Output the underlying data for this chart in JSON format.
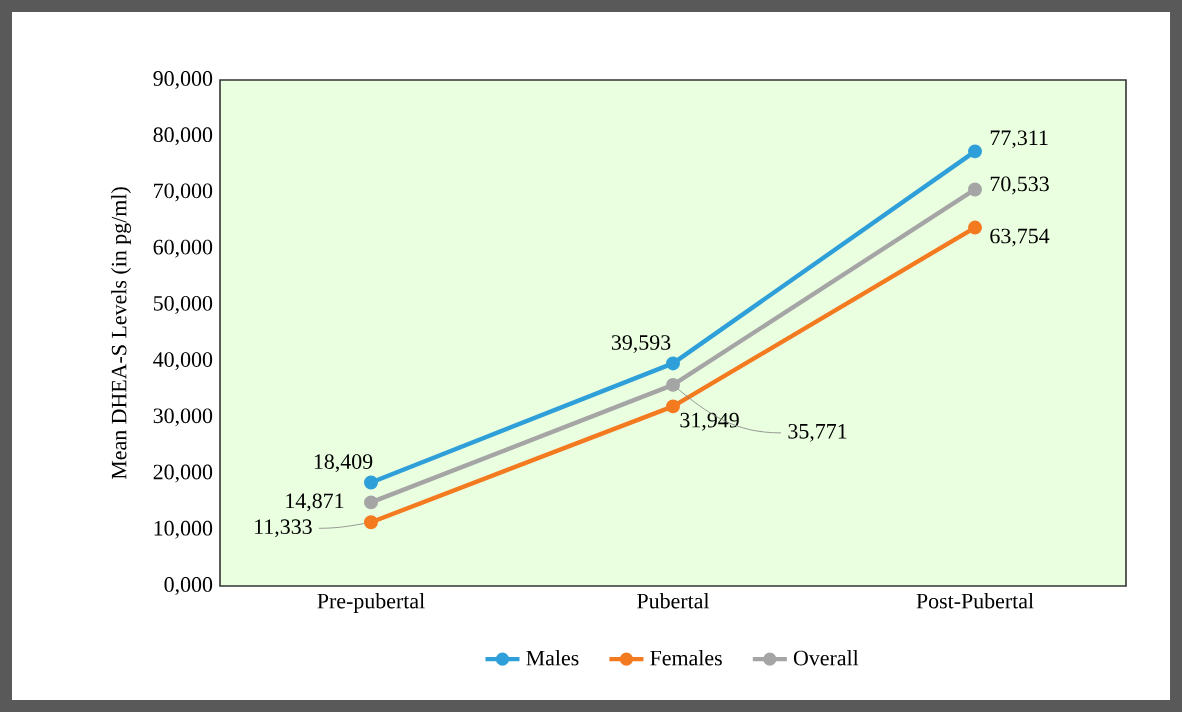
{
  "chart_data": {
    "type": "line",
    "ylabel": "Mean DHEA-S Levels (in pg/ml)",
    "categories": [
      "Pre-pubertal",
      "Pubertal",
      "Post-Pubertal"
    ],
    "series": [
      {
        "name": "Males",
        "color": "#2e9fd8",
        "values": [
          18409,
          39593,
          77311
        ],
        "value_labels": [
          "18,409",
          "39,593",
          "77,311"
        ]
      },
      {
        "name": "Females",
        "color": "#f47a20",
        "values": [
          11333,
          31949,
          63754
        ],
        "value_labels": [
          "11,333",
          "31,949",
          "63,754"
        ]
      },
      {
        "name": "Overall",
        "color": "#a5a5a5",
        "values": [
          14871,
          35771,
          70533
        ],
        "value_labels": [
          "14,871",
          "35,771",
          "70,533"
        ]
      }
    ],
    "ylim": [
      0,
      90000
    ],
    "yticks": [
      {
        "value": 0,
        "label": "0,000"
      },
      {
        "value": 10000,
        "label": "10,000"
      },
      {
        "value": 20000,
        "label": "20,000"
      },
      {
        "value": 30000,
        "label": "30,000"
      },
      {
        "value": 40000,
        "label": "40,000"
      },
      {
        "value": 50000,
        "label": "50,000"
      },
      {
        "value": 60000,
        "label": "60,000"
      },
      {
        "value": 70000,
        "label": "70,000"
      },
      {
        "value": 80000,
        "label": "80,000"
      },
      {
        "value": 90000,
        "label": "90,000"
      }
    ],
    "grid": false,
    "legend": "bottom",
    "marker": "circle",
    "line_style": "solid"
  }
}
